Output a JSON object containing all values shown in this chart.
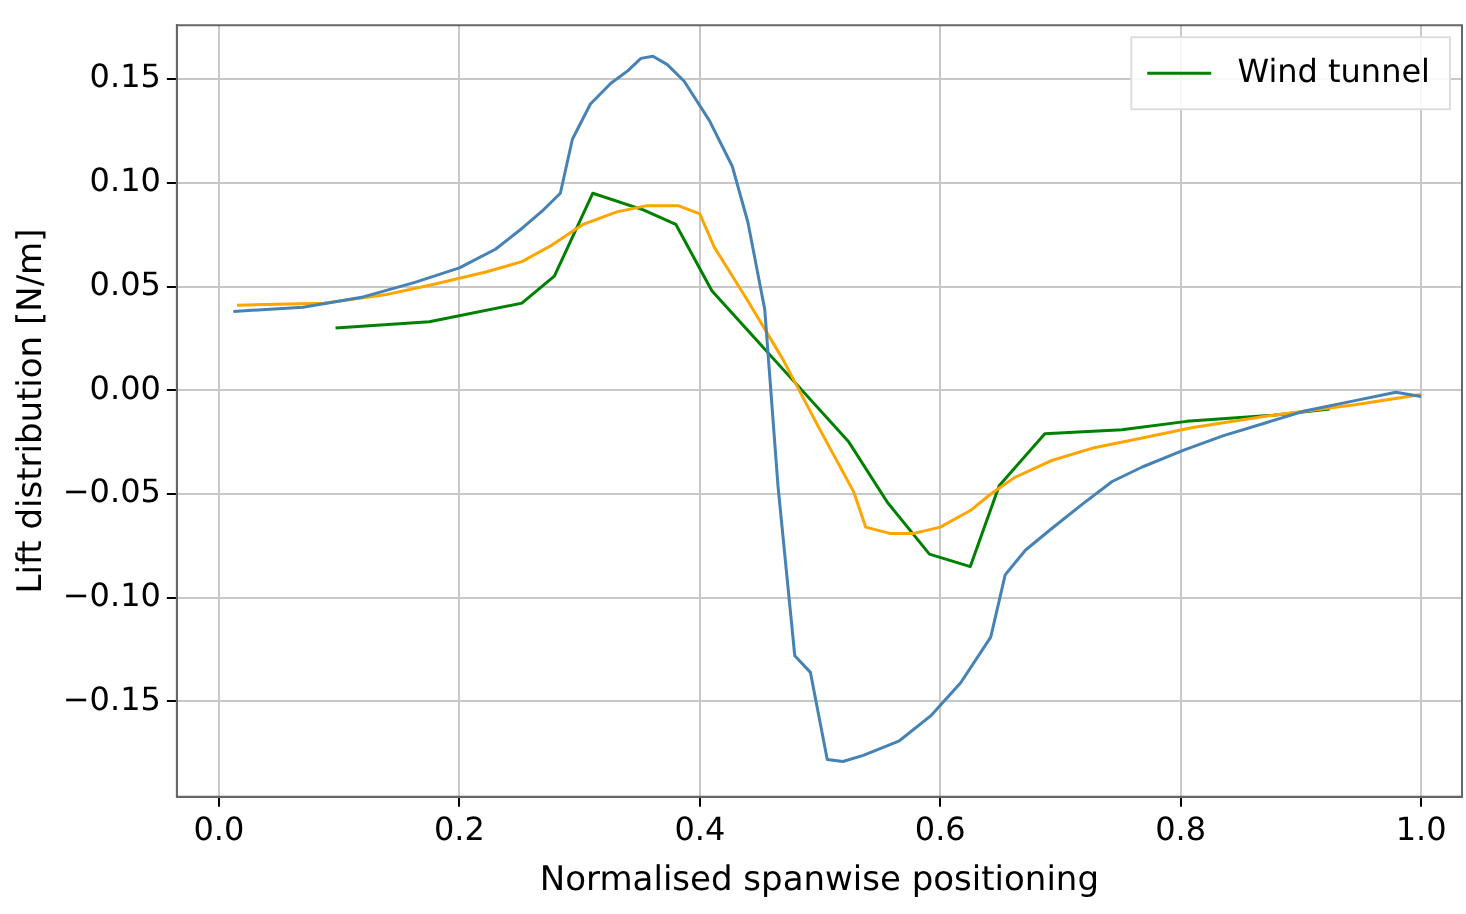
{
  "chart_data": {
    "type": "line",
    "xlabel": "Normalised spanwise positioning",
    "ylabel": "Lift distribution [N/m]",
    "xlim": [
      -0.035,
      1.034
    ],
    "ylim": [
      -0.196,
      0.176
    ],
    "xticks": [
      {
        "value": 0,
        "label": "0.0"
      },
      {
        "value": 0.2,
        "label": "0.2"
      },
      {
        "value": 0.4,
        "label": "0.4"
      },
      {
        "value": 0.6,
        "label": "0.6"
      },
      {
        "value": 0.8,
        "label": "0.8"
      },
      {
        "value": 1,
        "label": "1.0"
      }
    ],
    "yticks": [
      {
        "value": -0.15,
        "label": "−0.15"
      },
      {
        "value": -0.1,
        "label": "−0.10"
      },
      {
        "value": -0.05,
        "label": "−0.05"
      },
      {
        "value": 0,
        "label": "0.00"
      },
      {
        "value": 0.05,
        "label": "0.05"
      },
      {
        "value": 0.1,
        "label": "0.10"
      },
      {
        "value": 0.15,
        "label": "0.15"
      }
    ],
    "grid": true,
    "legend": "top right",
    "marker": "none",
    "line_style": "solid",
    "series": [
      {
        "color": "#4682b4",
        "x": [
          0.012,
          0.07,
          0.12,
          0.163,
          0.2,
          0.23,
          0.252,
          0.27,
          0.284,
          0.294,
          0.309,
          0.326,
          0.34,
          0.351,
          0.361,
          0.373,
          0.387,
          0.408,
          0.427,
          0.44,
          0.454,
          0.465,
          0.479,
          0.492,
          0.506,
          0.519,
          0.536,
          0.566,
          0.592,
          0.617,
          0.642,
          0.654,
          0.671,
          0.692,
          0.718,
          0.743,
          0.768,
          0.802,
          0.835,
          0.869,
          0.903,
          0.945,
          0.979,
          1.0
        ],
        "values": [
          0.038,
          0.04,
          0.045,
          0.052,
          0.059,
          0.068,
          0.078,
          0.087,
          0.095,
          0.121,
          0.138,
          0.148,
          0.154,
          0.16,
          0.161,
          0.157,
          0.149,
          0.13,
          0.108,
          0.081,
          0.039,
          -0.046,
          -0.128,
          -0.136,
          -0.178,
          -0.179,
          -0.176,
          -0.169,
          -0.157,
          -0.141,
          -0.119,
          -0.089,
          -0.077,
          -0.067,
          -0.055,
          -0.044,
          -0.037,
          -0.029,
          -0.022,
          -0.016,
          -0.01,
          -0.005,
          -0.001,
          -0.003
        ]
      },
      {
        "color": "#ffa500",
        "x": [
          0.015,
          0.087,
          0.138,
          0.178,
          0.222,
          0.252,
          0.277,
          0.303,
          0.331,
          0.356,
          0.382,
          0.4,
          0.412,
          0.44,
          0.469,
          0.499,
          0.528,
          0.538,
          0.558,
          0.578,
          0.6,
          0.625,
          0.642,
          0.662,
          0.692,
          0.726,
          0.768,
          0.81,
          0.877,
          0.945,
          1.0
        ],
        "values": [
          0.041,
          0.042,
          0.046,
          0.051,
          0.057,
          0.062,
          0.07,
          0.08,
          0.086,
          0.089,
          0.089,
          0.085,
          0.069,
          0.043,
          0.015,
          -0.018,
          -0.049,
          -0.066,
          -0.069,
          -0.069,
          -0.066,
          -0.058,
          -0.05,
          -0.042,
          -0.034,
          -0.028,
          -0.023,
          -0.018,
          -0.012,
          -0.007,
          -0.002
        ]
      },
      {
        "name": " Wind tunnel",
        "color": "#008000",
        "x": [
          0.097,
          0.175,
          0.252,
          0.279,
          0.311,
          0.353,
          0.38,
          0.41,
          0.524,
          0.556,
          0.591,
          0.625,
          0.649,
          0.687,
          0.751,
          0.805,
          0.877,
          0.924
        ],
        "values": [
          0.03,
          0.033,
          0.042,
          0.055,
          0.095,
          0.087,
          0.08,
          0.048,
          -0.025,
          -0.054,
          -0.079,
          -0.085,
          -0.046,
          -0.021,
          -0.019,
          -0.015,
          -0.012,
          -0.009
        ]
      }
    ]
  }
}
